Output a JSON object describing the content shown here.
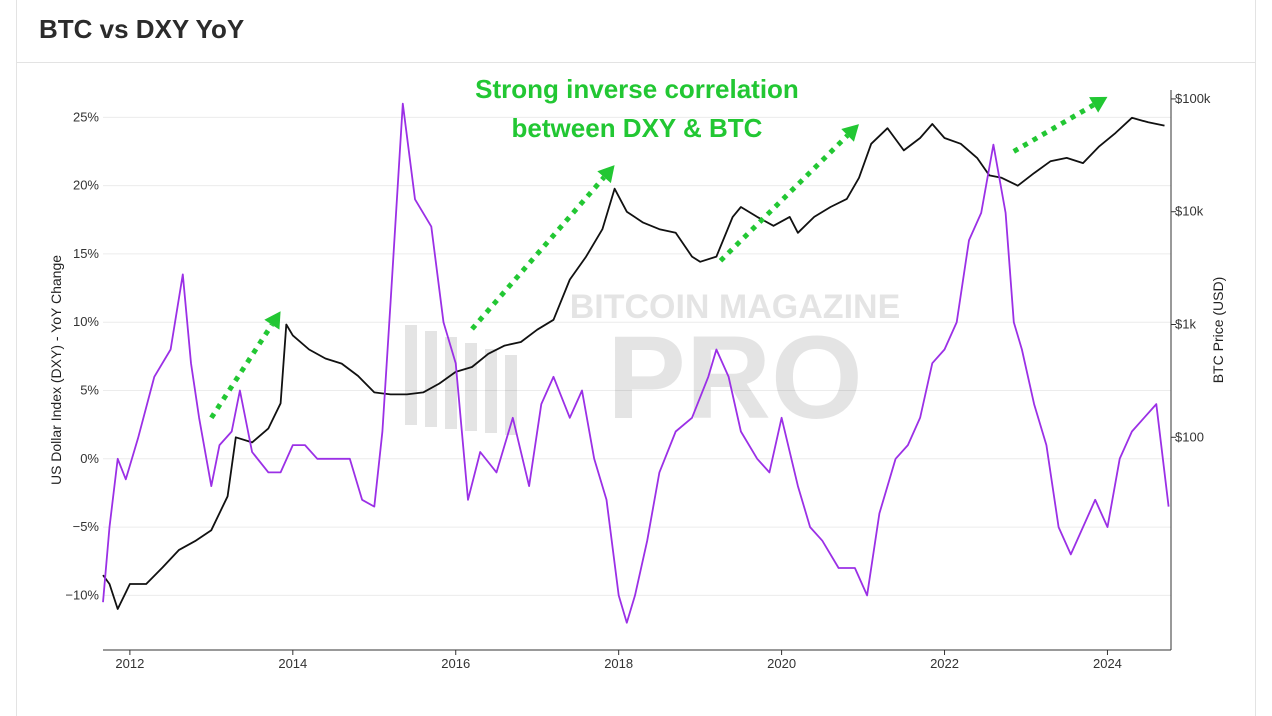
{
  "header": {
    "title": "BTC vs DXY YoY"
  },
  "chart_data": {
    "type": "line",
    "title": "BTC vs DXY YoY",
    "annotation": [
      "Strong inverse correlation",
      "between DXY & BTC"
    ],
    "watermark": {
      "line1": "BITCOIN MAGAZINE",
      "line2": "PRO"
    },
    "x_ticks": [
      "2012",
      "2014",
      "2016",
      "2018",
      "2020",
      "2022",
      "2024"
    ],
    "xlim": [
      2011.67,
      2024.78
    ],
    "y_left": {
      "label": "US Dollar Index (DXY) - YoY Change",
      "ticks": [
        "25%",
        "20%",
        "15%",
        "10%",
        "5%",
        "0%",
        "−5%",
        "−10%"
      ],
      "tick_values": [
        25,
        20,
        15,
        10,
        5,
        0,
        -5,
        -10
      ],
      "ylim": [
        -14,
        27
      ]
    },
    "y_right": {
      "label": "BTC Price (USD)",
      "ticks": [
        "$100k",
        "$10k",
        "$1k",
        "$100"
      ],
      "tick_values": [
        100000,
        10000,
        1000,
        100
      ],
      "scale": "log",
      "ylim": [
        1.3,
        120000
      ]
    },
    "grid": true,
    "colors": {
      "dxy": "#9b30e6",
      "btc": "#111111",
      "arrow": "#22c733",
      "accent_text": "#22c733"
    },
    "series": [
      {
        "axis": "left",
        "x": [
          2011.67,
          2011.75,
          2011.85,
          2011.95,
          2012.1,
          2012.3,
          2012.5,
          2012.65,
          2012.75,
          2012.85,
          2013.0,
          2013.1,
          2013.25,
          2013.35,
          2013.5,
          2013.7,
          2013.85,
          2014.0,
          2014.15,
          2014.3,
          2014.5,
          2014.7,
          2014.85,
          2015.0,
          2015.1,
          2015.2,
          2015.35,
          2015.5,
          2015.7,
          2015.85,
          2016.0,
          2016.15,
          2016.3,
          2016.5,
          2016.7,
          2016.9,
          2017.05,
          2017.2,
          2017.4,
          2017.55,
          2017.7,
          2017.85,
          2018.0,
          2018.1,
          2018.2,
          2018.35,
          2018.5,
          2018.7,
          2018.9,
          2019.1,
          2019.2,
          2019.35,
          2019.5,
          2019.7,
          2019.85,
          2020.0,
          2020.2,
          2020.35,
          2020.5,
          2020.7,
          2020.9,
          2021.05,
          2021.2,
          2021.4,
          2021.55,
          2021.7,
          2021.85,
          2022.0,
          2022.15,
          2022.3,
          2022.45,
          2022.6,
          2022.75,
          2022.85,
          2022.95,
          2023.1,
          2023.25,
          2023.4,
          2023.55,
          2023.7,
          2023.85,
          2024.0,
          2024.15,
          2024.3,
          2024.45,
          2024.6,
          2024.75
        ],
        "values": [
          -10.5,
          -5,
          0,
          -1.5,
          1.5,
          6,
          8,
          13.5,
          7,
          3,
          -2,
          1,
          2,
          5,
          0.5,
          -1,
          -1,
          1,
          1,
          0,
          0,
          0,
          -3,
          -3.5,
          2,
          11.5,
          26,
          19,
          17,
          10,
          7,
          -3,
          0.5,
          -1,
          3,
          -2,
          4,
          6,
          3,
          5,
          0,
          -3,
          -10,
          -12,
          -10,
          -6,
          -1,
          2,
          3,
          6,
          8,
          6,
          2,
          0,
          -1,
          3,
          -2,
          -5,
          -6,
          -8,
          -8,
          -10,
          -4,
          0,
          1,
          3,
          7,
          8,
          10,
          16,
          18,
          23,
          18,
          10,
          8,
          4,
          1,
          -5,
          -7,
          -5,
          -3,
          -5,
          0,
          2,
          3,
          4,
          -3.5
        ]
      },
      {
        "axis": "right",
        "x": [
          2011.67,
          2011.75,
          2011.85,
          2012.0,
          2012.2,
          2012.4,
          2012.6,
          2012.8,
          2013.0,
          2013.2,
          2013.3,
          2013.5,
          2013.7,
          2013.85,
          2013.92,
          2014.0,
          2014.2,
          2014.4,
          2014.6,
          2014.8,
          2015.0,
          2015.2,
          2015.4,
          2015.6,
          2015.8,
          2016.0,
          2016.2,
          2016.4,
          2016.6,
          2016.8,
          2017.0,
          2017.2,
          2017.4,
          2017.6,
          2017.8,
          2017.95,
          2018.1,
          2018.3,
          2018.5,
          2018.7,
          2018.9,
          2019.0,
          2019.2,
          2019.4,
          2019.5,
          2019.7,
          2019.9,
          2020.1,
          2020.2,
          2020.4,
          2020.6,
          2020.8,
          2020.95,
          2021.1,
          2021.3,
          2021.5,
          2021.7,
          2021.85,
          2022.0,
          2022.2,
          2022.4,
          2022.55,
          2022.7,
          2022.9,
          2023.1,
          2023.3,
          2023.5,
          2023.7,
          2023.9,
          2024.1,
          2024.3,
          2024.5,
          2024.7
        ],
        "values": [
          6,
          5,
          3,
          5,
          5,
          7,
          10,
          12,
          15,
          30,
          100,
          90,
          120,
          200,
          1000,
          800,
          600,
          500,
          450,
          350,
          250,
          240,
          240,
          250,
          300,
          380,
          420,
          550,
          650,
          700,
          900,
          1100,
          2500,
          4000,
          7000,
          16000,
          10000,
          8000,
          7000,
          6500,
          4000,
          3600,
          4000,
          9000,
          11000,
          9000,
          7500,
          9000,
          6500,
          9000,
          11000,
          13000,
          20000,
          40000,
          55000,
          35000,
          45000,
          60000,
          45000,
          40000,
          30000,
          21000,
          20000,
          17000,
          22000,
          28000,
          30000,
          27000,
          38000,
          50000,
          68000,
          62000,
          58000
        ]
      }
    ],
    "arrows": [
      {
        "from": [
          2013.0,
          3
        ],
        "to": [
          2013.85,
          10.8
        ]
      },
      {
        "from": [
          2016.2,
          9.5
        ],
        "to": [
          2017.95,
          21.5
        ]
      },
      {
        "from": [
          2019.25,
          14.5
        ],
        "to": [
          2020.95,
          24.5
        ]
      },
      {
        "from": [
          2022.85,
          22.5
        ],
        "to": [
          2024.0,
          26.5
        ]
      }
    ]
  }
}
